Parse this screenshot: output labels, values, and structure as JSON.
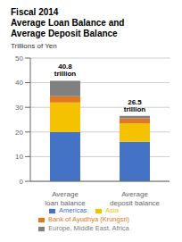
{
  "chart_data": {
    "type": "bar",
    "stacked": true,
    "title": "Fiscal 2014\nAverage Loan Balance and\nAverage Deposit Balance",
    "ylabel": "Trillions of Yen",
    "categories": [
      "Average\nloan balance",
      "Average\ndeposit balance"
    ],
    "series": [
      {
        "name": "Americas",
        "color": "#4472C4",
        "values": [
          20.0,
          16.0
        ]
      },
      {
        "name": "Asia",
        "color": "#F5C200",
        "values": [
          12.0,
          7.5
        ]
      },
      {
        "name": "Bank of Ayudhya (Krungsri)",
        "color": "#E07820",
        "values": [
          2.5,
          2.0
        ]
      },
      {
        "name": "Europe, Middle East, Africa",
        "color": "#808080",
        "values": [
          6.3,
          1.0
        ]
      }
    ],
    "annotations": [
      "40.8 trillion",
      "26.5 trillion"
    ],
    "ylim": [
      0,
      50
    ],
    "yticks": [
      0,
      10,
      20,
      30,
      40,
      50
    ],
    "grid": true,
    "legend": "bottom"
  }
}
